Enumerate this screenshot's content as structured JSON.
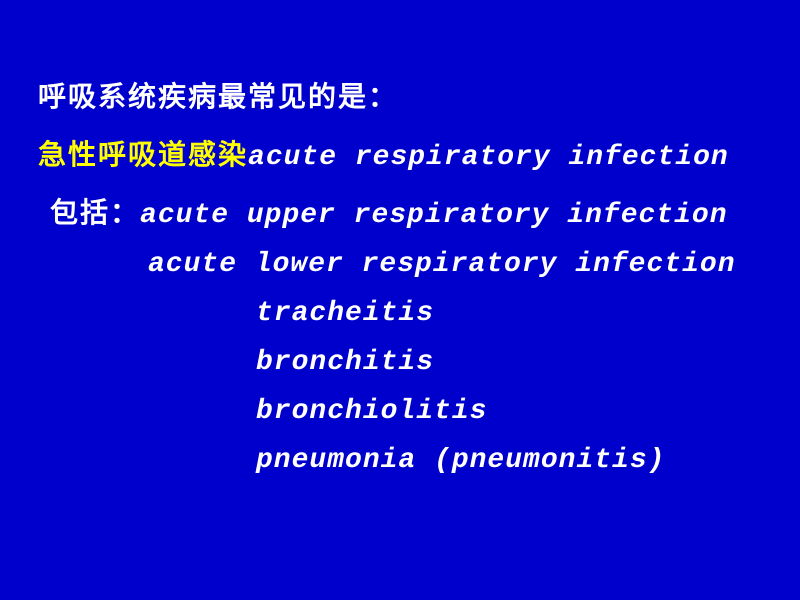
{
  "slide": {
    "background_color": "#0000cc",
    "text_color": "#ffffff",
    "highlight_color": "#ffff00",
    "font_size_main": 28,
    "line1": "呼吸系统疾病最常见的是：",
    "line2_cn": "急性呼吸道感染",
    "line2_en": "acute respiratory infection",
    "line3_cn": "包括：",
    "line3_en": "acute upper respiratory infection",
    "line4_en": "acute lower respiratory infection",
    "sub1": "tracheitis",
    "sub2": "bronchitis",
    "sub3": "bronchiolitis",
    "sub4": "pneumonia (pneumonitis)"
  }
}
